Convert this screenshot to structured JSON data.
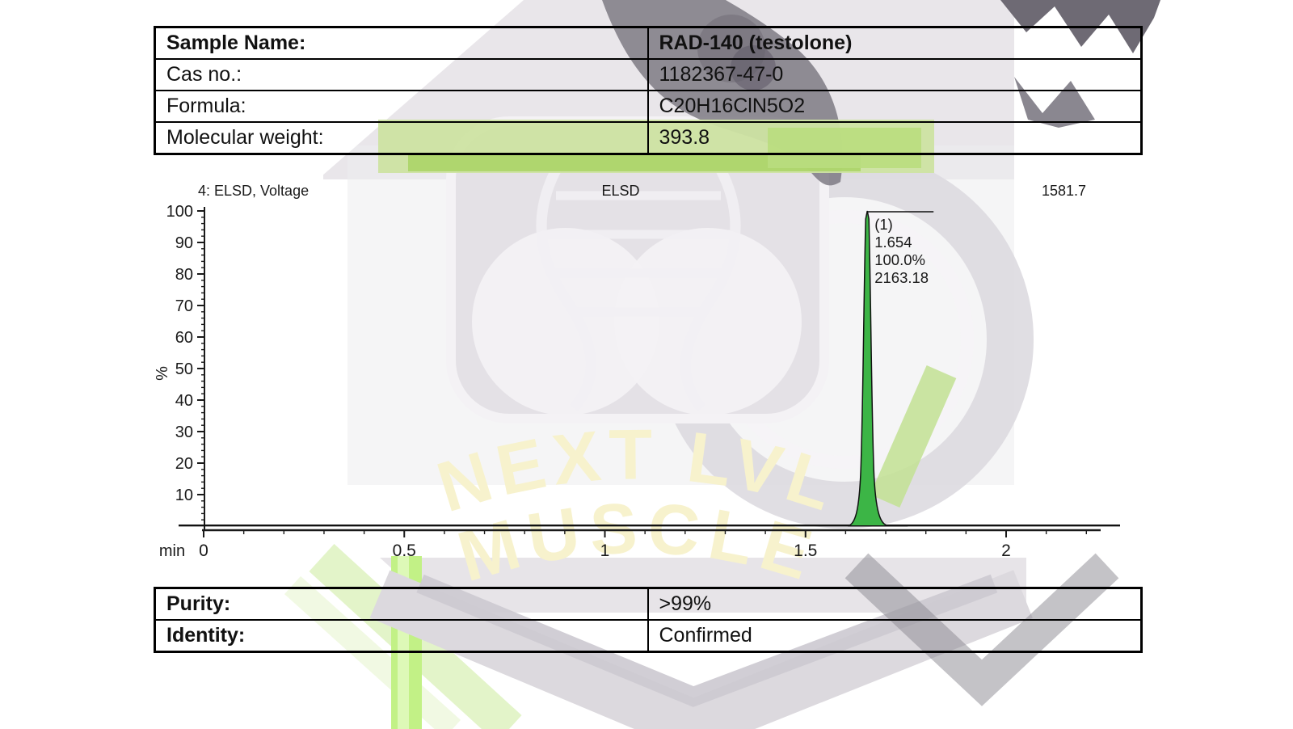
{
  "sample_table": {
    "rows": [
      {
        "label": "Sample Name:",
        "value": "RAD-140 (testolone)"
      },
      {
        "label": "Cas no.:",
        "value": "1182367-47-0"
      },
      {
        "label": "Formula:",
        "value": "C20H16ClN5O2"
      },
      {
        "label": "Molecular weight:",
        "value": "393.8"
      }
    ]
  },
  "results_table": {
    "rows": [
      {
        "label": "Purity:",
        "value": ">99%"
      },
      {
        "label": "Identity:",
        "value": "Confirmed"
      }
    ]
  },
  "chart_data": {
    "type": "area",
    "title": "ELSD",
    "header": {
      "left": "4: ELSD, Voltage",
      "center": "ELSD",
      "right": "1581.7"
    },
    "xlabel": "min",
    "ylabel": "%",
    "xlim": [
      0,
      2.23
    ],
    "ylim": [
      0,
      100
    ],
    "grid": false,
    "x_major_ticks": [
      {
        "value": 0,
        "label": "0"
      },
      {
        "value": 0.5,
        "label": "0.5"
      },
      {
        "value": 1,
        "label": "1"
      },
      {
        "value": 1.5,
        "label": "1.5"
      },
      {
        "value": 2,
        "label": "2"
      }
    ],
    "x_minor_step": 0.1,
    "y_major_ticks": [
      {
        "value": 100,
        "label": "100"
      },
      {
        "value": 90,
        "label": "90"
      },
      {
        "value": 80,
        "label": "80"
      },
      {
        "value": 70,
        "label": "70"
      },
      {
        "value": 60,
        "label": "60"
      },
      {
        "value": 50,
        "label": "50"
      },
      {
        "value": 40,
        "label": "40"
      },
      {
        "value": 30,
        "label": "30"
      },
      {
        "value": 20,
        "label": "20"
      },
      {
        "value": 10,
        "label": "10"
      }
    ],
    "y_minor_step": 2,
    "series": [
      {
        "name": "ELSD signal",
        "color": "#3cb546",
        "baseline_pct": 0.2,
        "peaks": [
          {
            "index_label": "(1)",
            "retention_time": "1.654",
            "area_percent": "100.0%",
            "area": "2163.18",
            "height_pct": 100
          }
        ]
      }
    ]
  },
  "watermark": {
    "line1": "NEXT LVL",
    "line2": "MUSCLE",
    "text_color": "#f7f2cd",
    "base_grey": "#e9e6ea",
    "dark_grey": "#76727c",
    "accent_green": "#a9d464"
  }
}
